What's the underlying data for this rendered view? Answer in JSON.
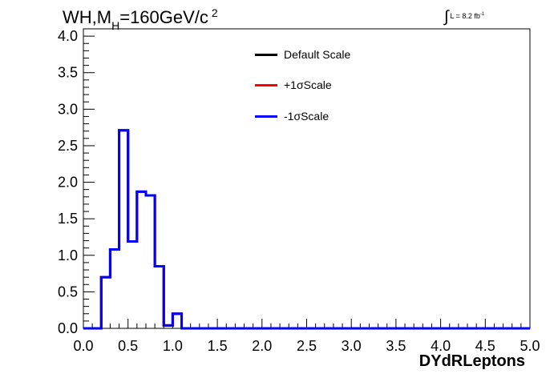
{
  "title": {
    "main": "WH,M",
    "sub": "H",
    "rest": "=160GeV/c",
    "sup": "2"
  },
  "luminosity": {
    "symbol": "∫",
    "text": "L = 8.2 fb",
    "sup": "-1"
  },
  "chart_data": {
    "type": "histogram",
    "xlabel": "DYdRLeptons",
    "ylabel": "",
    "xlim": [
      0.0,
      5.0
    ],
    "ylim": [
      0.0,
      4.1
    ],
    "x_ticks": [
      "0.0",
      "0.5",
      "1.0",
      "1.5",
      "2.0",
      "2.5",
      "3.0",
      "3.5",
      "4.0",
      "4.5",
      "5.0"
    ],
    "y_ticks": [
      "0.0",
      "0.5",
      "1.0",
      "1.5",
      "2.0",
      "2.5",
      "3.0",
      "3.5",
      "4.0"
    ],
    "bin_width": 0.1,
    "bin_start": 0.0,
    "legend": [
      {
        "label": "Default Scale",
        "color": "#000000"
      },
      {
        "label": "+1σScale",
        "color": "#ff0000"
      },
      {
        "label": "-1σScale",
        "color": "#0000ff"
      }
    ],
    "legend_position": "top-center",
    "series": [
      {
        "name": "Default Scale",
        "color": "#000000",
        "values": [
          0,
          0,
          0.7,
          1.08,
          2.71,
          1.19,
          1.87,
          1.82,
          0.85,
          0.04,
          0.2,
          0,
          0,
          0,
          0,
          0,
          0,
          0,
          0,
          0,
          0,
          0,
          0,
          0,
          0,
          0,
          0,
          0,
          0,
          0,
          0,
          0,
          0,
          0,
          0,
          0,
          0,
          0,
          0,
          0,
          0,
          0,
          0,
          0,
          0,
          0,
          0,
          0,
          0,
          0
        ]
      },
      {
        "name": "+1σScale",
        "color": "#ff0000",
        "values": [
          0,
          0,
          0.7,
          1.08,
          2.71,
          1.19,
          1.87,
          1.82,
          0.85,
          0.04,
          0.2,
          0,
          0,
          0,
          0,
          0,
          0,
          0,
          0,
          0,
          0,
          0,
          0,
          0,
          0,
          0,
          0,
          0,
          0,
          0,
          0,
          0,
          0,
          0,
          0,
          0,
          0,
          0,
          0,
          0,
          0,
          0,
          0,
          0,
          0,
          0,
          0,
          0,
          0,
          0
        ]
      },
      {
        "name": "-1σScale",
        "color": "#0000ff",
        "values": [
          0,
          0,
          0.7,
          1.08,
          2.71,
          1.19,
          1.87,
          1.82,
          0.85,
          0.04,
          0.2,
          0,
          0,
          0,
          0,
          0,
          0,
          0,
          0,
          0,
          0,
          0,
          0,
          0,
          0,
          0,
          0,
          0,
          0,
          0,
          0,
          0,
          0,
          0,
          0,
          0,
          0,
          0,
          0,
          0,
          0,
          0,
          0,
          0,
          0,
          0,
          0,
          0,
          0,
          0
        ]
      }
    ]
  }
}
